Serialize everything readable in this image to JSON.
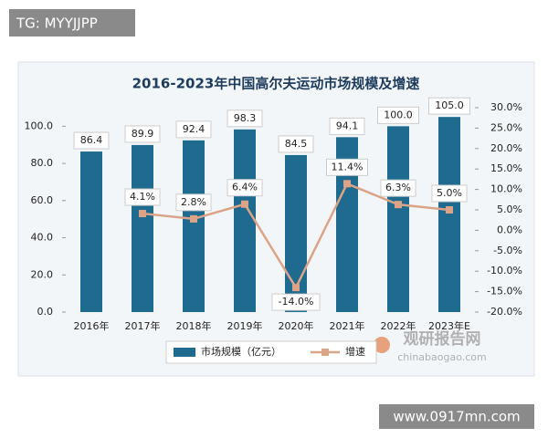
{
  "chart_data": {
    "type": "bar-line",
    "title": "2016-2023年中国高尔夫运动市场规模及增速",
    "categories": [
      "2016年",
      "2017年",
      "2018年",
      "2019年",
      "2020年",
      "2021年",
      "2022年",
      "2023年E"
    ],
    "series": [
      {
        "name": "市场规模（亿元）",
        "type": "bar",
        "color": "#1f6a8f",
        "values": [
          86.4,
          89.9,
          92.4,
          98.3,
          84.5,
          94.1,
          100,
          105
        ],
        "value_labels": [
          "86.4",
          "89.9",
          "92.4",
          "98.3",
          "84.5",
          "94.1",
          "100.0",
          "105.0"
        ]
      },
      {
        "name": "增速",
        "type": "line",
        "axis": "y2",
        "color": "#dca486",
        "values": [
          null,
          4.1,
          2.8,
          6.4,
          -14,
          11.4,
          6.3,
          5
        ],
        "value_labels": [
          null,
          "4.1%",
          "2.8%",
          "6.4%",
          "-14.0%",
          "11.4%",
          "6.3%",
          "5.0%"
        ]
      }
    ],
    "ylim": [
      0,
      110
    ],
    "yticks": [
      {
        "value": 0,
        "label": "0.0"
      },
      {
        "value": 20,
        "label": "20.0"
      },
      {
        "value": 40,
        "label": "40.0"
      },
      {
        "value": 60,
        "label": "60.0"
      },
      {
        "value": 80,
        "label": "80.0"
      },
      {
        "value": 100,
        "label": "100.0"
      }
    ],
    "y2lim": [
      -20,
      30
    ],
    "y2ticks": [
      {
        "value": -20,
        "label": "-20.0%"
      },
      {
        "value": -15,
        "label": "-15.0%"
      },
      {
        "value": -10,
        "label": "-10.0%"
      },
      {
        "value": -5,
        "label": "-5.0%"
      },
      {
        "value": 0,
        "label": "0.0%"
      },
      {
        "value": 5,
        "label": "5.0%"
      },
      {
        "value": 10,
        "label": "10.0%"
      },
      {
        "value": 15,
        "label": "15.0%"
      },
      {
        "value": 20,
        "label": "20.0%"
      },
      {
        "value": 25,
        "label": "25.0%"
      },
      {
        "value": 30,
        "label": "30.0%"
      }
    ],
    "annotations": [
      "TG: MYYJJPP",
      "观研报告网",
      "chinabaogao.com",
      "www.0917mn.com"
    ]
  }
}
